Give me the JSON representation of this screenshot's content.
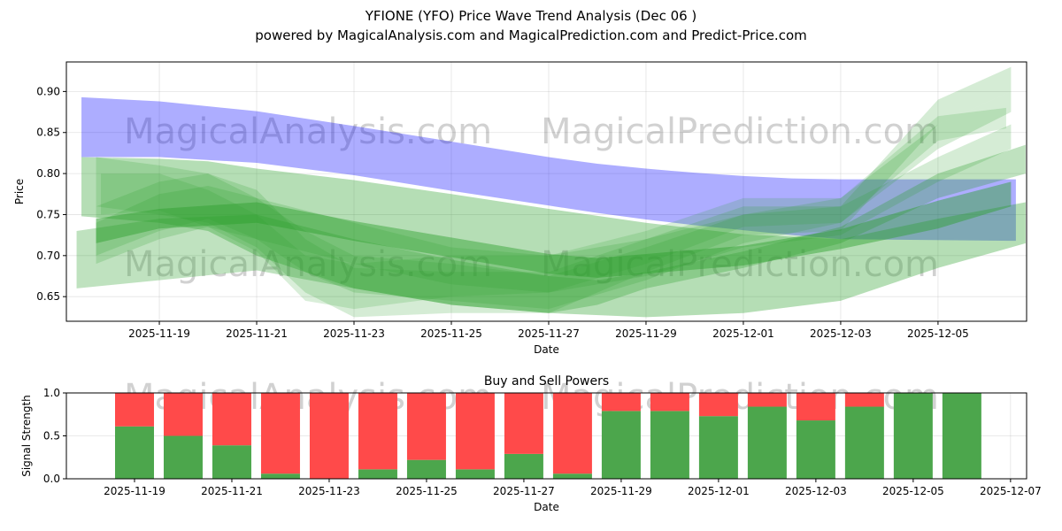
{
  "header": {
    "title": "YFIONE (YFO) Price Wave Trend Analysis (Dec 06 )",
    "subtitle": "powered by MagicalAnalysis.com and MagicalPrediction.com and Predict-Price.com"
  },
  "watermarks": [
    "MagicalAnalysis.com",
    "MagicalPrediction.com"
  ],
  "chart_data": [
    {
      "type": "area",
      "title": "",
      "xlabel": "Date",
      "ylabel": "Price",
      "x_origin": "2025-11-19",
      "x_unit": "days since x_origin",
      "xlim": [
        -1.91,
        17.82
      ],
      "ylim": [
        0.62,
        0.936
      ],
      "xticks": [
        "2025-11-19",
        "2025-11-21",
        "2025-11-23",
        "2025-11-25",
        "2025-11-27",
        "2025-11-29",
        "2025-12-01",
        "2025-12-03",
        "2025-12-05"
      ],
      "yticks": [
        "0.65",
        "0.70",
        "0.75",
        "0.80",
        "0.85",
        "0.90"
      ],
      "ytick_values": [
        0.65,
        0.7,
        0.75,
        0.8,
        0.85,
        0.9
      ],
      "grid": true,
      "bands": [
        {
          "name": "blue-trend-band",
          "color": "#0000ff",
          "opacity": 0.32,
          "x": [
            -1.6,
            0,
            2,
            4,
            6,
            8,
            9,
            10,
            11,
            12,
            13,
            14,
            17.6
          ],
          "upper": [
            0.893,
            0.888,
            0.876,
            0.858,
            0.839,
            0.82,
            0.812,
            0.806,
            0.801,
            0.797,
            0.794,
            0.793,
            0.793
          ],
          "lower": [
            0.82,
            0.82,
            0.813,
            0.798,
            0.779,
            0.761,
            0.752,
            0.744,
            0.737,
            0.731,
            0.725,
            0.72,
            0.718
          ]
        },
        {
          "name": "green-wide-band",
          "color": "#2ca02c",
          "opacity": 0.35,
          "x": [
            -1.6,
            0,
            1,
            2,
            4,
            6,
            8,
            10,
            12,
            14,
            16,
            17.8
          ],
          "upper": [
            0.82,
            0.818,
            0.815,
            0.806,
            0.792,
            0.775,
            0.757,
            0.74,
            0.726,
            0.72,
            0.745,
            0.765
          ],
          "lower": [
            0.748,
            0.74,
            0.73,
            0.7,
            0.66,
            0.64,
            0.63,
            0.625,
            0.63,
            0.645,
            0.685,
            0.715
          ]
        },
        {
          "name": "green-main-band",
          "color": "#2ca02c",
          "opacity": 0.45,
          "x": [
            -1.3,
            0,
            2,
            4,
            6,
            8,
            9,
            10,
            12,
            14,
            16,
            17.5
          ],
          "upper": [
            0.745,
            0.757,
            0.765,
            0.742,
            0.722,
            0.702,
            0.697,
            0.702,
            0.712,
            0.732,
            0.767,
            0.79
          ],
          "lower": [
            0.715,
            0.733,
            0.74,
            0.718,
            0.698,
            0.678,
            0.673,
            0.678,
            0.688,
            0.708,
            0.733,
            0.76
          ]
        },
        {
          "name": "green-lower-band",
          "color": "#2ca02c",
          "opacity": 0.3,
          "x": [
            -1.7,
            0,
            2,
            4,
            6,
            8,
            9,
            10,
            12,
            14,
            16,
            17.8
          ],
          "upper": [
            0.73,
            0.745,
            0.75,
            0.72,
            0.695,
            0.675,
            0.67,
            0.68,
            0.705,
            0.735,
            0.8,
            0.835
          ],
          "lower": [
            0.66,
            0.67,
            0.682,
            0.66,
            0.64,
            0.63,
            0.64,
            0.66,
            0.685,
            0.715,
            0.77,
            0.8
          ]
        },
        {
          "name": "green-wiggle-band-1",
          "color": "#2ca02c",
          "opacity": 0.2,
          "x": [
            -1.3,
            0,
            1,
            2,
            3,
            4,
            6,
            8,
            9,
            10,
            12,
            14,
            16,
            17.5
          ],
          "upper": [
            0.82,
            0.81,
            0.8,
            0.78,
            0.72,
            0.685,
            0.68,
            0.68,
            0.7,
            0.72,
            0.76,
            0.76,
            0.89,
            0.93
          ],
          "lower": [
            0.76,
            0.75,
            0.74,
            0.71,
            0.655,
            0.625,
            0.63,
            0.63,
            0.655,
            0.68,
            0.725,
            0.73,
            0.86,
            0.9
          ]
        },
        {
          "name": "green-wiggle-band-2",
          "color": "#2ca02c",
          "opacity": 0.2,
          "x": [
            -1.3,
            0,
            1,
            2,
            3,
            4,
            6,
            8,
            10,
            12,
            14,
            16,
            17.5
          ],
          "upper": [
            0.76,
            0.79,
            0.8,
            0.77,
            0.73,
            0.7,
            0.69,
            0.675,
            0.71,
            0.75,
            0.77,
            0.86,
            0.9
          ],
          "lower": [
            0.7,
            0.73,
            0.745,
            0.72,
            0.68,
            0.655,
            0.645,
            0.635,
            0.67,
            0.715,
            0.74,
            0.83,
            0.875
          ]
        },
        {
          "name": "green-wiggle-band-3",
          "color": "#2ca02c",
          "opacity": 0.2,
          "x": [
            -1.3,
            0,
            1,
            2,
            4,
            6,
            8,
            10,
            12,
            14,
            16,
            17.5
          ],
          "upper": [
            0.74,
            0.775,
            0.785,
            0.77,
            0.74,
            0.71,
            0.7,
            0.72,
            0.75,
            0.76,
            0.82,
            0.86
          ],
          "lower": [
            0.69,
            0.72,
            0.735,
            0.72,
            0.69,
            0.665,
            0.655,
            0.675,
            0.71,
            0.725,
            0.79,
            0.83
          ]
        },
        {
          "name": "green-wiggle-band-4",
          "color": "#2ca02c",
          "opacity": 0.18,
          "x": [
            -1.2,
            0,
            1,
            2,
            3,
            4,
            6,
            8,
            10,
            12,
            14,
            16,
            17.4
          ],
          "upper": [
            0.8,
            0.8,
            0.78,
            0.75,
            0.7,
            0.69,
            0.7,
            0.7,
            0.73,
            0.77,
            0.77,
            0.87,
            0.88
          ],
          "lower": [
            0.75,
            0.755,
            0.735,
            0.705,
            0.645,
            0.635,
            0.65,
            0.655,
            0.69,
            0.735,
            0.74,
            0.84,
            0.855
          ]
        }
      ]
    },
    {
      "type": "bar",
      "title": "Buy and Sell Powers",
      "xlabel": "Date",
      "ylabel": "Signal Strength",
      "x_origin": "2025-11-19",
      "xlim": [
        -1.4,
        18.33
      ],
      "ylim": [
        0,
        1
      ],
      "xticks": [
        "2025-11-19",
        "2025-11-21",
        "2025-11-23",
        "2025-11-25",
        "2025-11-27",
        "2025-11-29",
        "2025-12-01",
        "2025-12-03",
        "2025-12-05",
        "2025-12-07"
      ],
      "yticks": [
        "0.0",
        "0.5",
        "1.0"
      ],
      "ytick_values": [
        0,
        0.5,
        1.0
      ],
      "grid": true,
      "categories": [
        "2025-11-19",
        "2025-11-20",
        "2025-11-21",
        "2025-11-22",
        "2025-11-23",
        "2025-11-24",
        "2025-11-25",
        "2025-11-26",
        "2025-11-27",
        "2025-11-28",
        "2025-11-29",
        "2025-11-30",
        "2025-12-01",
        "2025-12-02",
        "2025-12-03",
        "2025-12-04",
        "2025-12-05",
        "2025-12-06"
      ],
      "series": [
        {
          "name": "Buy",
          "color": "#4ca64c",
          "values": [
            0.61,
            0.5,
            0.39,
            0.06,
            0.0,
            0.11,
            0.22,
            0.11,
            0.29,
            0.06,
            0.79,
            0.79,
            0.73,
            0.84,
            0.68,
            0.84,
            1.0,
            1.0
          ]
        },
        {
          "name": "Sell",
          "color": "#ff4a4a",
          "values": [
            0.39,
            0.5,
            0.61,
            0.94,
            1.0,
            0.89,
            0.78,
            0.89,
            0.71,
            0.94,
            0.21,
            0.21,
            0.27,
            0.16,
            0.32,
            0.16,
            0.0,
            0.0
          ]
        }
      ]
    }
  ]
}
